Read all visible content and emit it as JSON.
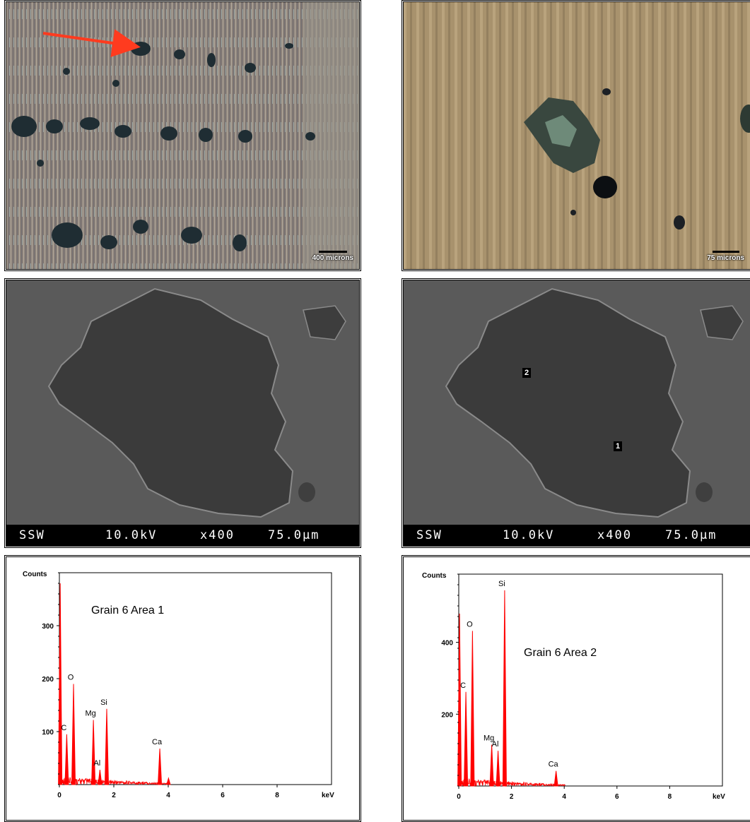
{
  "micrographs": {
    "left_scale": "400 microns",
    "right_scale": "75 microns"
  },
  "sem": {
    "label": "SSW",
    "voltage": "10.0kV",
    "magnification": "x400",
    "scale": "75.0µm",
    "area_markers": [
      "2",
      "1"
    ]
  },
  "colors": {
    "spectrum": "#ff0000",
    "arrow": "#ff3b1f"
  },
  "chart_data": [
    {
      "type": "bar",
      "title": "Grain 6 Area 1",
      "ylabel": "Counts",
      "xlabel": "keV",
      "xlim": [
        0,
        10
      ],
      "ylim": [
        0,
        400
      ],
      "yticks": [
        100,
        200,
        300
      ],
      "xticks": [
        0,
        2,
        4,
        6,
        8
      ],
      "peaks": [
        {
          "x": 0.03,
          "y": 380,
          "label": ""
        },
        {
          "x": 0.27,
          "y": 95,
          "label": "C"
        },
        {
          "x": 0.52,
          "y": 190,
          "label": "O"
        },
        {
          "x": 1.25,
          "y": 122,
          "label": "Mg"
        },
        {
          "x": 1.49,
          "y": 28,
          "label": "Al"
        },
        {
          "x": 1.74,
          "y": 143,
          "label": "Si"
        },
        {
          "x": 3.69,
          "y": 68,
          "label": "Ca"
        },
        {
          "x": 4.01,
          "y": 12,
          "label": ""
        }
      ]
    },
    {
      "type": "bar",
      "title": "Grain 6 Area 2",
      "ylabel": "Counts",
      "xlabel": "keV",
      "xlim": [
        0,
        10
      ],
      "ylim": [
        0,
        590
      ],
      "yticks": [
        200,
        400
      ],
      "xticks": [
        0,
        2,
        4,
        6,
        8
      ],
      "peaks": [
        {
          "x": 0.03,
          "y": 480,
          "label": ""
        },
        {
          "x": 0.27,
          "y": 262,
          "label": "C"
        },
        {
          "x": 0.52,
          "y": 432,
          "label": "O"
        },
        {
          "x": 1.25,
          "y": 115,
          "label": "Mg"
        },
        {
          "x": 1.49,
          "y": 98,
          "label": "Al"
        },
        {
          "x": 1.74,
          "y": 545,
          "label": "Si"
        },
        {
          "x": 3.69,
          "y": 42,
          "label": "Ca"
        }
      ]
    }
  ]
}
